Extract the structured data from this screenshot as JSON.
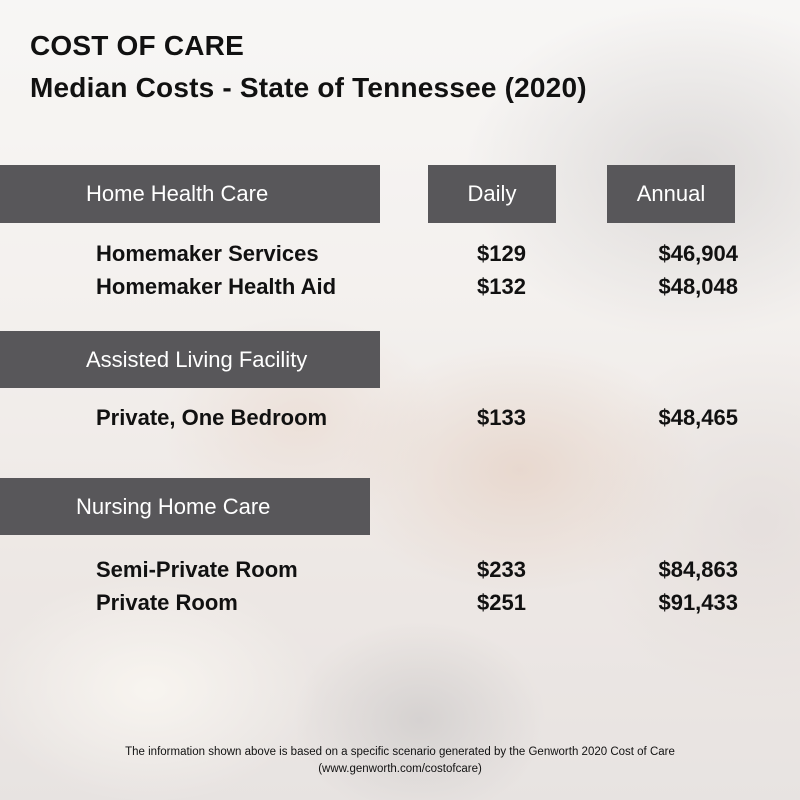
{
  "title_line1": "COST OF CARE",
  "title_line2": "Median Costs - State of Tennessee (2020)",
  "headers": {
    "daily": "Daily",
    "annual": "Annual"
  },
  "sections": [
    {
      "name": "Home Health Care",
      "rows": [
        {
          "label": "Homemaker Services",
          "daily": "$129",
          "annual": "$46,904"
        },
        {
          "label": "Homemaker Health Aid",
          "daily": "$132",
          "annual": "$48,048"
        }
      ]
    },
    {
      "name": "Assisted Living Facility",
      "rows": [
        {
          "label": "Private, One Bedroom",
          "daily": "$133",
          "annual": "$48,465"
        }
      ]
    },
    {
      "name": "Nursing Home Care",
      "rows": [
        {
          "label": "Semi-Private Room",
          "daily": "$233",
          "annual": "$84,863"
        },
        {
          "label": "Private Room",
          "daily": "$251",
          "annual": "$91,433"
        }
      ]
    }
  ],
  "footnote_line1": "The information shown above is based on a specific scenario generated by the Genworth 2020 Cost of Care",
  "footnote_line2": "(www.genworth.com/costofcare)",
  "colors": {
    "bar": "#58575a",
    "bar_text": "#ffffff",
    "text": "#111111"
  }
}
